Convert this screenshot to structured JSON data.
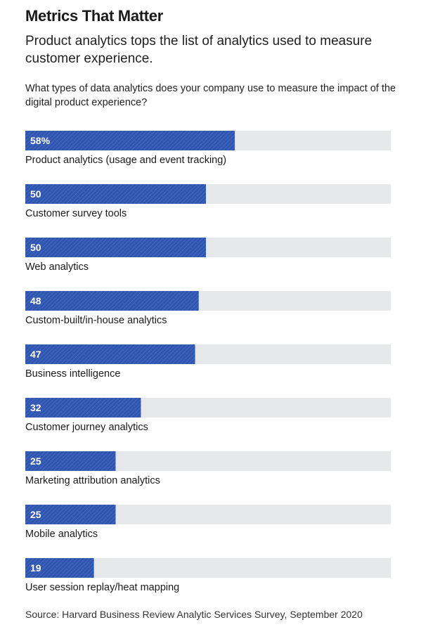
{
  "header": {
    "title": "Metrics That Matter",
    "subtitle": "Product analytics tops the list of analytics used to measure customer experience.",
    "question": "What types of data analytics does your company use to measure the impact of the digital product experience?"
  },
  "footer": {
    "source": "Source: Harvard Business Review Analytic Services Survey, September 2020"
  },
  "colors": {
    "bar_fill": "#2e55b0",
    "track": "#e6e8ea",
    "value_text": "#ffffff",
    "label_text": "#1a1a1a"
  },
  "chart_data": {
    "type": "bar",
    "orientation": "horizontal",
    "title": "Metrics That Matter",
    "subtitle": "Product analytics tops the list of analytics used to measure customer experience.",
    "xlabel": "",
    "ylabel": "",
    "xlim": [
      0,
      100
    ],
    "grid": false,
    "legend": "none",
    "categories": [
      "Product analytics (usage and event tracking)",
      "Customer survey tools",
      "Web analytics",
      "Custom-built/in-house analytics",
      "Business intelligence",
      "Customer journey analytics",
      "Marketing attribution analytics",
      "Mobile analytics",
      "User session replay/heat mapping"
    ],
    "values": [
      58,
      50,
      50,
      48,
      47,
      32,
      25,
      25,
      19
    ],
    "value_labels": [
      "58%",
      "50",
      "50",
      "48",
      "47",
      "32",
      "25",
      "25",
      "19"
    ]
  }
}
